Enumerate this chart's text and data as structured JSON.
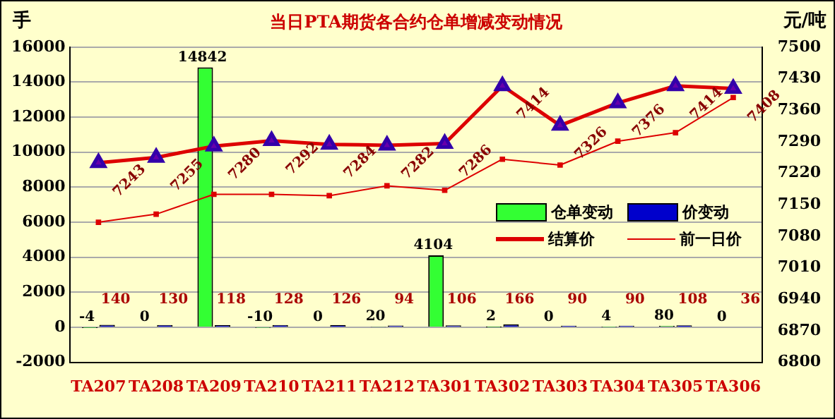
{
  "chart_data": {
    "type": "bar",
    "title": "当日PTA期货各合约仓单增减变动情况",
    "ylabel": "手",
    "y2label": "元/吨",
    "categories": [
      "TA207",
      "TA208",
      "TA209",
      "TA210",
      "TA211",
      "TA212",
      "TA301",
      "TA302",
      "TA303",
      "TA304",
      "TA305",
      "TA306"
    ],
    "series": [
      {
        "name": "仓单变动",
        "color": "#33ff33",
        "values": [
          -4,
          0,
          14842,
          -10,
          0,
          20,
          4104,
          2,
          0,
          4,
          80,
          0
        ],
        "value_labels": [
          "-4",
          "0",
          "14842",
          "-10",
          "0",
          "20",
          "4104",
          "2",
          "0",
          "4",
          "80",
          "0"
        ]
      },
      {
        "name": "价变动",
        "color": "#0000cc",
        "values": [
          140,
          130,
          118,
          128,
          126,
          94,
          106,
          166,
          90,
          90,
          108,
          36
        ],
        "value_labels": [
          "140",
          "130",
          "118",
          "128",
          "126",
          "94",
          "106",
          "166",
          "90",
          "90",
          "108",
          "36"
        ]
      },
      {
        "name": "结算价",
        "type": "line",
        "axis": "y2",
        "color": "#dd0000",
        "marker": "triangle",
        "values": [
          7243,
          7255,
          7280,
          7292,
          7284,
          7282,
          7286,
          7414,
          7326,
          7376,
          7414,
          7408
        ],
        "value_labels": [
          "7243",
          "7255",
          "7280",
          "7292",
          "7284",
          "7282",
          "7286",
          "7414",
          "7326",
          "7376",
          "7414",
          "7408"
        ]
      },
      {
        "name": "前一日价",
        "type": "line",
        "axis": "y2",
        "color": "#dd0000",
        "marker": "square",
        "values": [
          7111,
          7129,
          7173,
          7173,
          7170,
          7192,
          7182,
          7251,
          7238,
          7291,
          7310,
          7388
        ]
      }
    ],
    "ylim": [
      -2000,
      16000
    ],
    "yticks": [
      -2000,
      0,
      2000,
      4000,
      6000,
      8000,
      10000,
      12000,
      14000,
      16000
    ],
    "y2lim": [
      6800,
      7500
    ],
    "y2ticks": [
      6800,
      6870,
      6940,
      7010,
      7080,
      7150,
      7220,
      7290,
      7360,
      7430,
      7500
    ],
    "grid": "y",
    "legend": "center right"
  }
}
